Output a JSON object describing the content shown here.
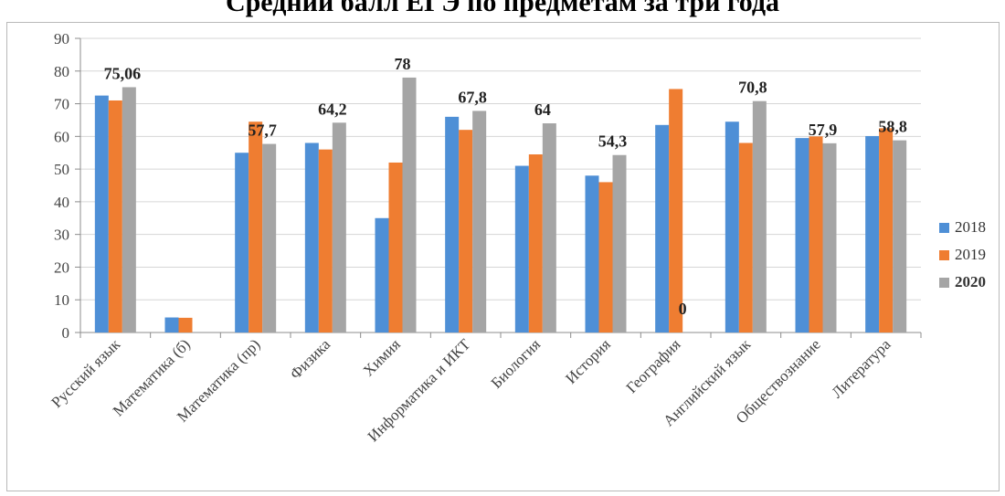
{
  "colors": {
    "2018": "#4e8fd6",
    "2019": "#ef7d31",
    "2020": "#a5a5a5",
    "grid": "#d6d6d6",
    "axis": "#8c8c8c"
  },
  "chart_data": {
    "type": "bar",
    "title": "Средний балл ЕГЭ по предметам за три года",
    "xlabel": "",
    "ylabel": "",
    "ylim": [
      0,
      90
    ],
    "yticks": [
      0,
      10,
      20,
      30,
      40,
      50,
      60,
      70,
      80,
      90
    ],
    "grid": true,
    "legend_position": "right",
    "categories": [
      "Русский язык",
      "Математика (б)",
      "Математика (пр)",
      "Физика",
      "Химия",
      "Информатика и ИКТ",
      "Биология",
      "История",
      "География",
      "Английский язык",
      "Обществознание",
      "Литература"
    ],
    "series": [
      {
        "name": "2018",
        "values": [
          72.5,
          4.6,
          55,
          58,
          35,
          66,
          51,
          48,
          63.5,
          64.5,
          59.5,
          60.1
        ]
      },
      {
        "name": "2019",
        "values": [
          71,
          4.5,
          64.5,
          56,
          52,
          62,
          54.5,
          46,
          74.5,
          58,
          60,
          62.5
        ]
      },
      {
        "name": "2020",
        "values": [
          75.06,
          null,
          57.7,
          64.2,
          78,
          67.8,
          64,
          54.3,
          0,
          70.8,
          57.9,
          58.8
        ]
      }
    ],
    "data_labels": [
      "75,06",
      "",
      "57,7",
      "64,2",
      "78",
      "67,8",
      "64",
      "54,3",
      "0",
      "70,8",
      "57,9",
      "58,8"
    ],
    "legend": [
      {
        "label": "2018",
        "bold": false
      },
      {
        "label": "2019",
        "bold": false
      },
      {
        "label": "2020",
        "bold": true
      }
    ]
  }
}
